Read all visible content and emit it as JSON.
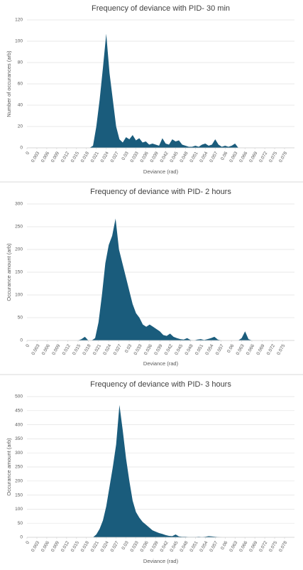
{
  "chart_data": [
    {
      "type": "area",
      "title": "Frequency of deviance with PID- 30 min",
      "x_label": "Deviance (rad)",
      "y_label": "Number of occurances (arb)",
      "color": "#1a5c7c",
      "grid": true,
      "x": [
        0,
        0.001,
        0.002,
        0.003,
        0.004,
        0.005,
        0.006,
        0.007,
        0.008,
        0.009,
        0.01,
        0.011,
        0.012,
        0.013,
        0.014,
        0.015,
        0.016,
        0.017,
        0.018,
        0.019,
        0.02,
        0.021,
        0.022,
        0.023,
        0.024,
        0.025,
        0.026,
        0.027,
        0.028,
        0.029,
        0.03,
        0.031,
        0.032,
        0.033,
        0.034,
        0.035,
        0.036,
        0.037,
        0.038,
        0.039,
        0.04,
        0.041,
        0.042,
        0.043,
        0.044,
        0.045,
        0.046,
        0.047,
        0.048,
        0.049,
        0.05,
        0.051,
        0.052,
        0.053,
        0.054,
        0.055,
        0.056,
        0.057,
        0.058,
        0.059,
        0.06,
        0.061,
        0.062,
        0.063,
        0.064,
        0.065,
        0.066,
        0.067,
        0.068,
        0.069,
        0.07,
        0.071,
        0.072,
        0.073,
        0.074,
        0.075,
        0.076,
        0.077,
        0.078,
        0.079,
        0.08
      ],
      "values": [
        0,
        0,
        0,
        0,
        0,
        0,
        0,
        0,
        0,
        0,
        0,
        0,
        0,
        0,
        0,
        0,
        0,
        0,
        0,
        0,
        2,
        20,
        45,
        75,
        107,
        70,
        45,
        20,
        8,
        5,
        10,
        8,
        12,
        7,
        9,
        5,
        6,
        3,
        4,
        3,
        2,
        9,
        4,
        3,
        8,
        6,
        7,
        3,
        2,
        1,
        1,
        2,
        1,
        3,
        4,
        2,
        3,
        8,
        3,
        1,
        2,
        1,
        2,
        4,
        0,
        0,
        0,
        0,
        0,
        0,
        0,
        0,
        0,
        0,
        0,
        0,
        0,
        0,
        0,
        0,
        0
      ],
      "xlim": [
        0,
        0.081
      ],
      "xticks": [
        0,
        0.003,
        0.006,
        0.009,
        0.012,
        0.015,
        0.018,
        0.021,
        0.024,
        0.027,
        0.03,
        0.033,
        0.036,
        0.039,
        0.042,
        0.045,
        0.048,
        0.051,
        0.054,
        0.057,
        0.06,
        0.063,
        0.066,
        0.069,
        0.072,
        0.075,
        0.078
      ],
      "ylim": [
        0,
        120
      ],
      "yticks": [
        0,
        20,
        40,
        60,
        80,
        100,
        120
      ]
    },
    {
      "type": "area",
      "title": "Frequency of deviance with PID- 2 hours",
      "x_label": "Deviance (rad)",
      "y_label": "Occurance amount (arb)",
      "color": "#1a5c7c",
      "grid": true,
      "x": [
        0,
        0.001,
        0.002,
        0.003,
        0.004,
        0.005,
        0.006,
        0.007,
        0.008,
        0.009,
        0.01,
        0.011,
        0.012,
        0.013,
        0.014,
        0.015,
        0.016,
        0.017,
        0.018,
        0.019,
        0.02,
        0.021,
        0.022,
        0.023,
        0.024,
        0.025,
        0.026,
        0.027,
        0.028,
        0.029,
        0.03,
        0.031,
        0.032,
        0.033,
        0.034,
        0.035,
        0.036,
        0.037,
        0.038,
        0.039,
        0.04,
        0.041,
        0.042,
        0.043,
        0.044,
        0.045,
        0.046,
        0.047,
        0.048,
        0.049,
        0.05,
        0.051,
        0.052,
        0.053,
        0.054,
        0.055,
        0.056,
        0.057,
        0.058,
        0.059,
        0.06,
        0.061,
        0.062,
        0.063,
        0.064,
        0.065,
        0.066,
        0.067,
        0.068,
        0.069,
        0.07,
        0.071,
        0.072,
        0.073,
        0.074,
        0.075,
        0.076,
        0.077,
        0.078
      ],
      "values": [
        0,
        0,
        0,
        0,
        0,
        0,
        0,
        0,
        0,
        0,
        0,
        0,
        0,
        0,
        0,
        0,
        3,
        8,
        0,
        0,
        5,
        40,
        100,
        170,
        210,
        230,
        268,
        200,
        170,
        140,
        110,
        80,
        60,
        50,
        35,
        30,
        35,
        30,
        25,
        20,
        12,
        10,
        15,
        8,
        5,
        3,
        2,
        5,
        1,
        0,
        2,
        3,
        1,
        3,
        5,
        8,
        2,
        0,
        0,
        0,
        0,
        0,
        0,
        5,
        20,
        3,
        0,
        0,
        0,
        0,
        0,
        0,
        0,
        0,
        0,
        0,
        0,
        0,
        0
      ],
      "xlim": [
        0,
        0.0785
      ],
      "xticks": [
        0,
        0.003,
        0.006,
        0.009,
        0.012,
        0.015,
        0.018,
        0.021,
        0.024,
        0.027,
        0.03,
        0.033,
        0.036,
        0.039,
        0.042,
        0.045,
        0.048,
        0.051,
        0.054,
        0.057,
        0.06,
        0.063,
        0.066,
        0.069,
        0.072,
        0.075
      ],
      "ylim": [
        0,
        300
      ],
      "yticks": [
        0,
        50,
        100,
        150,
        200,
        250,
        300
      ]
    },
    {
      "type": "area",
      "title": "Frequency of deviance with PID- 3 hours",
      "x_label": "Deviance (rad)",
      "y_label": "Occurance amount (arb)",
      "color": "#1a5c7c",
      "grid": true,
      "x": [
        0,
        0.001,
        0.002,
        0.003,
        0.004,
        0.005,
        0.006,
        0.007,
        0.008,
        0.009,
        0.01,
        0.011,
        0.012,
        0.013,
        0.014,
        0.015,
        0.016,
        0.017,
        0.018,
        0.019,
        0.02,
        0.021,
        0.022,
        0.023,
        0.024,
        0.025,
        0.026,
        0.027,
        0.028,
        0.029,
        0.03,
        0.031,
        0.032,
        0.033,
        0.034,
        0.035,
        0.036,
        0.037,
        0.038,
        0.039,
        0.04,
        0.041,
        0.042,
        0.043,
        0.044,
        0.045,
        0.046,
        0.047,
        0.048,
        0.049,
        0.05,
        0.051,
        0.052,
        0.053,
        0.054,
        0.055,
        0.056,
        0.057,
        0.058,
        0.059,
        0.06,
        0.061,
        0.062,
        0.063,
        0.064,
        0.065,
        0.066,
        0.067,
        0.068,
        0.069,
        0.07,
        0.071,
        0.072,
        0.073,
        0.074,
        0.075,
        0.076,
        0.077,
        0.078,
        0.079,
        0.08
      ],
      "values": [
        0,
        0,
        0,
        0,
        0,
        0,
        0,
        0,
        0,
        0,
        0,
        0,
        0,
        0,
        0,
        0,
        0,
        0,
        0,
        0,
        0,
        10,
        30,
        60,
        110,
        180,
        250,
        330,
        470,
        380,
        280,
        200,
        130,
        90,
        70,
        55,
        45,
        35,
        25,
        20,
        15,
        12,
        8,
        5,
        4,
        10,
        3,
        2,
        2,
        1,
        1,
        1,
        2,
        1,
        2,
        4,
        3,
        2,
        1,
        0,
        0,
        0,
        0,
        0,
        0,
        0,
        0,
        0,
        0,
        0,
        0,
        0,
        0,
        0,
        0,
        0,
        0,
        0,
        0,
        0,
        0
      ],
      "xlim": [
        0,
        0.081
      ],
      "xticks": [
        0,
        0.003,
        0.006,
        0.009,
        0.012,
        0.015,
        0.018,
        0.021,
        0.024,
        0.027,
        0.03,
        0.033,
        0.036,
        0.039,
        0.042,
        0.045,
        0.048,
        0.051,
        0.054,
        0.057,
        0.06,
        0.063,
        0.066,
        0.069,
        0.072,
        0.075,
        0.078
      ],
      "ylim": [
        0,
        500
      ],
      "yticks": [
        0,
        50,
        100,
        150,
        200,
        250,
        300,
        350,
        400,
        450,
        500
      ]
    }
  ]
}
